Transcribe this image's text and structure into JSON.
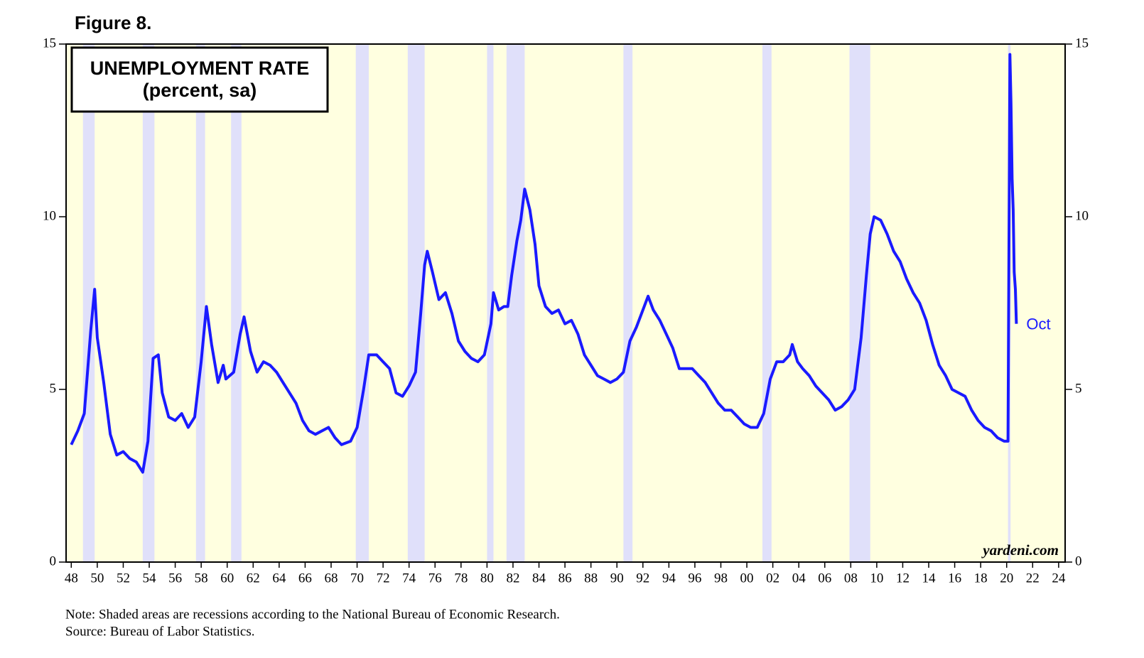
{
  "chart_data": {
    "type": "line",
    "figure_label": "Figure 8.",
    "title": "UNEMPLOYMENT RATE",
    "subtitle": "(percent, sa)",
    "annotation": "Oct",
    "watermark": "yardeni.com",
    "note": "Note: Shaded areas are recessions according to the National Bureau of Economic Research.",
    "source": "Source: Bureau of Labor Statistics.",
    "x": [
      1948.0,
      1948.5,
      1949.0,
      1949.5,
      1949.8,
      1950.0,
      1950.5,
      1951.0,
      1951.5,
      1952.0,
      1952.5,
      1953.0,
      1953.5,
      1953.9,
      1954.3,
      1954.7,
      1955.0,
      1955.5,
      1956.0,
      1956.5,
      1957.0,
      1957.5,
      1958.0,
      1958.4,
      1958.8,
      1959.3,
      1959.7,
      1959.9,
      1960.5,
      1961.0,
      1961.3,
      1961.8,
      1962.3,
      1962.8,
      1963.3,
      1963.8,
      1964.3,
      1964.8,
      1965.3,
      1965.8,
      1966.3,
      1966.8,
      1967.3,
      1967.8,
      1968.3,
      1968.8,
      1969.5,
      1970.0,
      1970.5,
      1970.9,
      1971.5,
      1972.0,
      1972.5,
      1973.0,
      1973.5,
      1974.0,
      1974.5,
      1974.9,
      1975.2,
      1975.4,
      1975.8,
      1976.3,
      1976.8,
      1977.3,
      1977.8,
      1978.3,
      1978.8,
      1979.3,
      1979.8,
      1980.3,
      1980.5,
      1980.9,
      1981.3,
      1981.6,
      1981.9,
      1982.3,
      1982.6,
      1982.9,
      1983.3,
      1983.7,
      1984.0,
      1984.5,
      1985.0,
      1985.5,
      1986.0,
      1986.5,
      1987.0,
      1987.5,
      1988.0,
      1988.5,
      1989.0,
      1989.5,
      1990.0,
      1990.5,
      1991.0,
      1991.5,
      1992.0,
      1992.4,
      1992.8,
      1993.3,
      1993.8,
      1994.3,
      1994.8,
      1995.3,
      1995.8,
      1996.3,
      1996.8,
      1997.3,
      1997.8,
      1998.3,
      1998.8,
      1999.3,
      1999.8,
      2000.3,
      2000.8,
      2001.3,
      2001.8,
      2002.3,
      2002.8,
      2003.3,
      2003.5,
      2003.9,
      2004.3,
      2004.8,
      2005.3,
      2005.8,
      2006.3,
      2006.8,
      2007.3,
      2007.8,
      2008.3,
      2008.8,
      2009.2,
      2009.5,
      2009.8,
      2010.3,
      2010.8,
      2011.3,
      2011.8,
      2012.3,
      2012.8,
      2013.3,
      2013.8,
      2014.3,
      2014.8,
      2015.3,
      2015.8,
      2016.3,
      2016.8,
      2017.3,
      2017.8,
      2018.3,
      2018.8,
      2019.3,
      2019.8,
      2020.1,
      2020.25,
      2020.33,
      2020.42,
      2020.5,
      2020.58,
      2020.67,
      2020.75
    ],
    "series": [
      {
        "name": "Unemployment rate",
        "color": "#1a1aff",
        "values": [
          3.4,
          3.8,
          4.3,
          6.7,
          7.9,
          6.5,
          5.2,
          3.7,
          3.1,
          3.2,
          3.0,
          2.9,
          2.6,
          3.5,
          5.9,
          6.0,
          4.9,
          4.2,
          4.1,
          4.3,
          3.9,
          4.2,
          5.8,
          7.4,
          6.3,
          5.2,
          5.7,
          5.3,
          5.5,
          6.6,
          7.1,
          6.1,
          5.5,
          5.8,
          5.7,
          5.5,
          5.2,
          4.9,
          4.6,
          4.1,
          3.8,
          3.7,
          3.8,
          3.9,
          3.6,
          3.4,
          3.5,
          3.9,
          5.0,
          6.0,
          6.0,
          5.8,
          5.6,
          4.9,
          4.8,
          5.1,
          5.5,
          7.2,
          8.6,
          9.0,
          8.4,
          7.6,
          7.8,
          7.2,
          6.4,
          6.1,
          5.9,
          5.8,
          6.0,
          6.9,
          7.8,
          7.3,
          7.4,
          7.4,
          8.3,
          9.3,
          9.9,
          10.8,
          10.2,
          9.2,
          8.0,
          7.4,
          7.2,
          7.3,
          6.9,
          7.0,
          6.6,
          6.0,
          5.7,
          5.4,
          5.3,
          5.2,
          5.3,
          5.5,
          6.4,
          6.8,
          7.3,
          7.7,
          7.3,
          7.0,
          6.6,
          6.2,
          5.6,
          5.6,
          5.6,
          5.4,
          5.2,
          4.9,
          4.6,
          4.4,
          4.4,
          4.2,
          4.0,
          3.9,
          3.9,
          4.3,
          5.3,
          5.8,
          5.8,
          6.0,
          6.3,
          5.8,
          5.6,
          5.4,
          5.1,
          4.9,
          4.7,
          4.4,
          4.5,
          4.7,
          5.0,
          6.5,
          8.3,
          9.5,
          10.0,
          9.9,
          9.5,
          9.0,
          8.7,
          8.2,
          7.8,
          7.5,
          7.0,
          6.3,
          5.7,
          5.4,
          5.0,
          4.9,
          4.8,
          4.4,
          4.1,
          3.9,
          3.8,
          3.6,
          3.5,
          3.5,
          14.7,
          13.3,
          11.1,
          10.2,
          8.4,
          7.9,
          6.9
        ]
      }
    ],
    "recessions": [
      [
        1948.9,
        1949.8
      ],
      [
        1953.5,
        1954.4
      ],
      [
        1957.6,
        1958.3
      ],
      [
        1960.3,
        1961.1
      ],
      [
        1969.9,
        1970.9
      ],
      [
        1973.9,
        1975.2
      ],
      [
        1980.0,
        1980.5
      ],
      [
        1981.5,
        1982.9
      ],
      [
        1990.5,
        1991.2
      ],
      [
        2001.2,
        2001.9
      ],
      [
        2007.9,
        2009.5
      ],
      [
        2020.1,
        2020.3
      ]
    ],
    "recession_color": "#e0e0fa",
    "background": "#ffffe0",
    "xlim": [
      1947.6,
      2024.5
    ],
    "xticks": [
      {
        "value": 1948,
        "label": "48"
      },
      {
        "value": 1950,
        "label": "50"
      },
      {
        "value": 1952,
        "label": "52"
      },
      {
        "value": 1954,
        "label": "54"
      },
      {
        "value": 1956,
        "label": "56"
      },
      {
        "value": 1958,
        "label": "58"
      },
      {
        "value": 1960,
        "label": "60"
      },
      {
        "value": 1962,
        "label": "62"
      },
      {
        "value": 1964,
        "label": "64"
      },
      {
        "value": 1966,
        "label": "66"
      },
      {
        "value": 1968,
        "label": "68"
      },
      {
        "value": 1970,
        "label": "70"
      },
      {
        "value": 1972,
        "label": "72"
      },
      {
        "value": 1974,
        "label": "74"
      },
      {
        "value": 1976,
        "label": "76"
      },
      {
        "value": 1978,
        "label": "78"
      },
      {
        "value": 1980,
        "label": "80"
      },
      {
        "value": 1982,
        "label": "82"
      },
      {
        "value": 1984,
        "label": "84"
      },
      {
        "value": 1986,
        "label": "86"
      },
      {
        "value": 1988,
        "label": "88"
      },
      {
        "value": 1990,
        "label": "90"
      },
      {
        "value": 1992,
        "label": "92"
      },
      {
        "value": 1994,
        "label": "94"
      },
      {
        "value": 1996,
        "label": "96"
      },
      {
        "value": 1998,
        "label": "98"
      },
      {
        "value": 2000,
        "label": "00"
      },
      {
        "value": 2002,
        "label": "02"
      },
      {
        "value": 2004,
        "label": "04"
      },
      {
        "value": 2006,
        "label": "06"
      },
      {
        "value": 2008,
        "label": "08"
      },
      {
        "value": 2010,
        "label": "10"
      },
      {
        "value": 2012,
        "label": "12"
      },
      {
        "value": 2014,
        "label": "14"
      },
      {
        "value": 2016,
        "label": "16"
      },
      {
        "value": 2018,
        "label": "18"
      },
      {
        "value": 2020,
        "label": "20"
      },
      {
        "value": 2022,
        "label": "22"
      },
      {
        "value": 2024,
        "label": "24"
      }
    ],
    "ylim": [
      0,
      15
    ],
    "yticks": [
      0,
      5,
      10,
      15
    ],
    "y2lim": [
      0,
      15
    ],
    "y2ticks": [
      0,
      5,
      10,
      15
    ]
  }
}
